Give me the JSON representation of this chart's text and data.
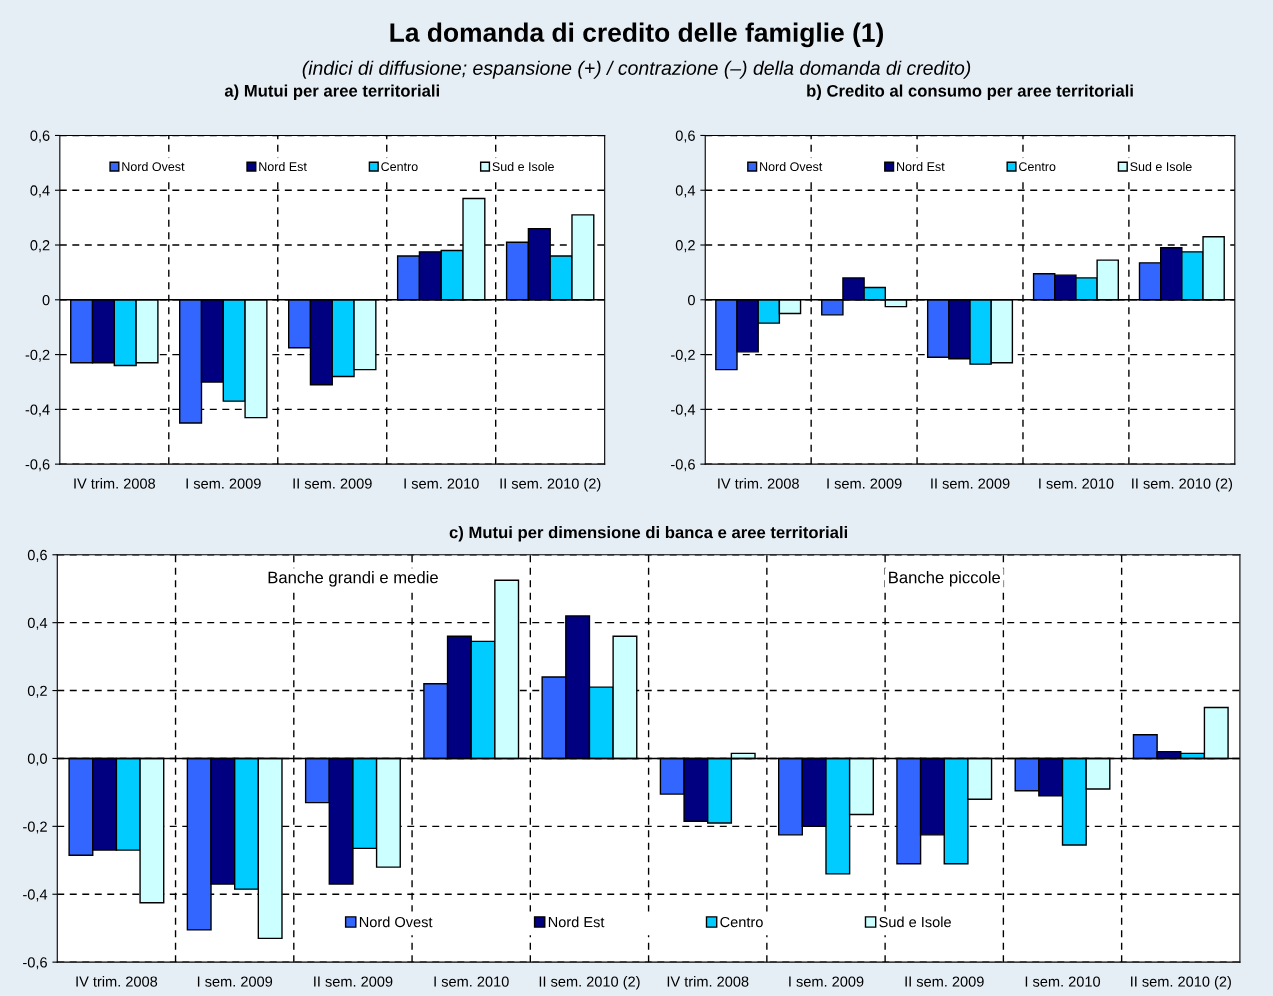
{
  "chart_data": [
    {
      "type": "other",
      "title": "La domanda di credito delle famiglie (1)",
      "subtitle": "(indici di diffusione; espansione (+) / contrazione (–) della domanda di credito)"
    },
    {
      "type": "bar",
      "title": "a) Mutui per aree territoriali",
      "categories": [
        "IV trim. 2008",
        "I sem. 2009",
        "II sem. 2009",
        "I sem. 2010",
        "II sem. 2010 (2)"
      ],
      "series": [
        {
          "name": "Nord Ovest",
          "color": "#3366ff",
          "values": [
            -0.23,
            -0.45,
            -0.175,
            0.16,
            0.21
          ]
        },
        {
          "name": "Nord Est",
          "color": "#000080",
          "values": [
            -0.23,
            -0.3,
            -0.31,
            0.175,
            0.26
          ]
        },
        {
          "name": "Centro",
          "color": "#00ccff",
          "values": [
            -0.24,
            -0.37,
            -0.28,
            0.18,
            0.16
          ]
        },
        {
          "name": "Sud e Isole",
          "color": "#ccffff",
          "values": [
            -0.23,
            -0.43,
            -0.255,
            0.37,
            0.31
          ]
        }
      ],
      "ylim": [
        -0.6,
        0.6
      ],
      "yticks": [
        {
          "value": -0.6,
          "label": "-0,6"
        },
        {
          "value": -0.4,
          "label": "-0,4"
        },
        {
          "value": -0.2,
          "label": "-0,2"
        },
        0,
        {
          "value": 0.2,
          "label": "0,2"
        },
        {
          "value": 0.4,
          "label": "0,4"
        },
        {
          "value": 0.6,
          "label": "0,6"
        }
      ],
      "grid": true,
      "legend": "top"
    },
    {
      "type": "bar",
      "title": "b) Credito al consumo per aree territoriali",
      "categories": [
        "IV trim. 2008",
        "I sem. 2009",
        "II sem. 2009",
        "I sem. 2010",
        "II sem. 2010 (2)"
      ],
      "series": [
        {
          "name": "Nord Ovest",
          "color": "#3366ff",
          "values": [
            -0.255,
            -0.055,
            -0.21,
            0.095,
            0.135
          ]
        },
        {
          "name": "Nord Est",
          "color": "#000080",
          "values": [
            -0.19,
            0.08,
            -0.215,
            0.09,
            0.19
          ]
        },
        {
          "name": "Centro",
          "color": "#00ccff",
          "values": [
            -0.085,
            0.045,
            -0.235,
            0.08,
            0.175
          ]
        },
        {
          "name": "Sud e Isole",
          "color": "#ccffff",
          "values": [
            -0.05,
            -0.025,
            -0.23,
            0.145,
            0.23
          ]
        }
      ],
      "ylim": [
        -0.6,
        0.6
      ],
      "yticks": [
        {
          "value": -0.6,
          "label": "-0,6"
        },
        {
          "value": -0.4,
          "label": "-0,4"
        },
        {
          "value": -0.2,
          "label": "-0,2"
        },
        0,
        {
          "value": 0.2,
          "label": "0,2"
        },
        {
          "value": 0.4,
          "label": "0,4"
        },
        {
          "value": 0.6,
          "label": "0,6"
        }
      ],
      "grid": true,
      "legend": "top"
    },
    {
      "type": "bar",
      "title": "c) Mutui per dimensione di banca e aree territoriali",
      "categories": [
        "IV trim. 2008",
        "I sem. 2009",
        "II sem. 2009",
        "I sem. 2010",
        "II sem. 2010 (2)",
        "IV trim. 2008",
        "I sem. 2009",
        "II sem. 2009",
        "I sem. 2010",
        "II sem. 2010 (2)"
      ],
      "series": [
        {
          "name": "Nord Ovest",
          "color": "#3366ff",
          "values": [
            -0.285,
            -0.505,
            -0.13,
            0.22,
            0.24,
            -0.105,
            -0.225,
            -0.31,
            -0.095,
            0.07
          ]
        },
        {
          "name": "Nord Est",
          "color": "#000080",
          "values": [
            -0.27,
            -0.37,
            -0.37,
            0.36,
            0.42,
            -0.185,
            -0.2,
            -0.225,
            -0.11,
            0.02
          ]
        },
        {
          "name": "Centro",
          "color": "#00ccff",
          "values": [
            -0.27,
            -0.385,
            -0.265,
            0.345,
            0.21,
            -0.19,
            -0.34,
            -0.31,
            -0.255,
            0.015
          ]
        },
        {
          "name": "Sud e Isole",
          "color": "#ccffff",
          "values": [
            -0.425,
            -0.53,
            -0.32,
            0.525,
            0.36,
            0.015,
            -0.165,
            -0.12,
            -0.09,
            0.15
          ]
        }
      ],
      "ylim": [
        -0.6,
        0.6
      ],
      "yticks": [
        {
          "value": -0.6,
          "label": "-0,6"
        },
        {
          "value": -0.4,
          "label": "-0,4"
        },
        {
          "value": -0.2,
          "label": "-0,2"
        },
        {
          "value": 0,
          "label": "0,0"
        },
        {
          "value": 0.2,
          "label": "0,2"
        },
        {
          "value": 0.4,
          "label": "0,4"
        },
        {
          "value": 0.6,
          "label": "0,6"
        }
      ],
      "annotations": [
        "Banche grandi e medie",
        "Banche piccole"
      ],
      "grid": true,
      "legend": "bottom"
    }
  ]
}
